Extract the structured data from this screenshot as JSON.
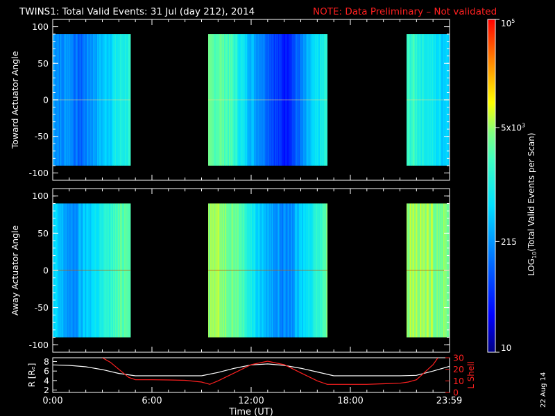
{
  "title": "TWINS1: Total Valid Events: 31 Jul (day 212), 2014",
  "note": "NOTE: Data Preliminary – Not validated",
  "date_stamp": "22 Aug 14",
  "colors": {
    "background": "#000000",
    "axes": "#ffffff",
    "note": "#ff2020",
    "r_line": "#ffffff",
    "lshell_line": "#ff2020"
  },
  "chart_data": [
    {
      "type": "heatmap",
      "ylabel": "Toward Actuator Angle",
      "xlim": [
        0,
        24
      ],
      "ylim": [
        -110,
        110
      ],
      "yticks": [
        "100",
        "50",
        "0",
        "-50",
        "-100"
      ],
      "data_yrange": [
        -90,
        90
      ],
      "segments": [
        {
          "start": 0.0,
          "end": 4.7,
          "profile": [
            2.4,
            2.35,
            2.2,
            2.4,
            2.3,
            2.1,
            2.0,
            2.2,
            2.3,
            2.4,
            2.5,
            2.6,
            2.7,
            2.8,
            2.9,
            3.0,
            3.05,
            3.1
          ]
        },
        {
          "start": 9.4,
          "end": 16.6,
          "profile": [
            3.4,
            3.45,
            3.5,
            3.4,
            3.3,
            3.0,
            2.8,
            2.6,
            2.4,
            2.3,
            2.1,
            1.9,
            1.7,
            1.6,
            1.8,
            2.0,
            2.2,
            2.5,
            2.7,
            2.9,
            3.1
          ]
        },
        {
          "start": 21.4,
          "end": 24.0,
          "profile": [
            3.2,
            3.25,
            3.1,
            3.0,
            2.9,
            2.8,
            2.7,
            2.75
          ]
        }
      ]
    },
    {
      "type": "heatmap",
      "ylabel": "Away Actuator Angle",
      "xlim": [
        0,
        24
      ],
      "ylim": [
        -110,
        110
      ],
      "yticks": [
        "100",
        "50",
        "0",
        "-50",
        "-100"
      ],
      "data_yrange": [
        -90,
        90
      ],
      "segments": [
        {
          "start": 0.0,
          "end": 4.7,
          "profile": [
            2.7,
            2.6,
            2.5,
            2.4,
            2.2,
            2.3,
            2.5,
            2.6,
            2.7,
            2.8,
            2.9,
            3.0,
            3.1,
            3.2,
            3.3,
            3.4,
            3.5,
            3.55
          ]
        },
        {
          "start": 9.4,
          "end": 16.6,
          "profile": [
            3.7,
            3.75,
            3.7,
            3.65,
            3.6,
            3.5,
            3.3,
            3.0,
            2.8,
            2.6,
            2.5,
            2.4,
            2.3,
            2.2,
            2.3,
            2.5,
            2.7,
            2.9,
            3.1,
            3.3,
            3.5
          ]
        },
        {
          "start": 21.4,
          "end": 24.0,
          "profile": [
            3.75,
            3.8,
            3.75,
            3.7,
            3.7,
            3.65,
            3.6,
            3.55
          ]
        }
      ]
    },
    {
      "type": "line",
      "xlabel": "Time (UT)",
      "ylabel_left": "R [Rₑ]",
      "ylabel_right": "L Shell",
      "xlim": [
        0,
        24
      ],
      "xticks": [
        {
          "v": 0,
          "label": "0:00"
        },
        {
          "v": 6,
          "label": "6:00"
        },
        {
          "v": 12,
          "label": "12:00"
        },
        {
          "v": 18,
          "label": "18:00"
        },
        {
          "v": 23.98,
          "label": "23:59"
        }
      ],
      "yticks_left": [
        "8",
        "6",
        "4",
        "2"
      ],
      "yticks_right": [
        "30",
        "20",
        "10",
        "0"
      ],
      "ylim_left": [
        1.5,
        8.8
      ],
      "ylim_right": [
        0,
        30
      ],
      "series": [
        {
          "axis": "left",
          "x": [
            0,
            1,
            2,
            3,
            4,
            5,
            6,
            7,
            8,
            9,
            10,
            11,
            12,
            13,
            14,
            15,
            16,
            17,
            18,
            19,
            20,
            21,
            22,
            23,
            24
          ],
          "y": [
            7.3,
            7.2,
            6.9,
            6.3,
            5.5,
            5.0,
            5.0,
            5.0,
            5.0,
            5.0,
            5.7,
            6.6,
            7.3,
            7.5,
            7.2,
            6.6,
            5.8,
            5.0,
            5.0,
            5.0,
            5.0,
            5.0,
            5.1,
            6.0,
            7.0
          ]
        },
        {
          "axis": "right",
          "x": [
            3,
            3.5,
            4,
            4.6,
            5,
            6,
            7,
            8,
            9,
            9.5,
            10,
            11,
            12,
            13,
            14,
            15,
            16,
            16.6,
            17,
            18,
            19,
            20,
            21,
            21.5,
            22,
            23,
            23.3
          ],
          "y": [
            30,
            26,
            20,
            13,
            11,
            11,
            10.8,
            10.5,
            9,
            7,
            10,
            17,
            24,
            27,
            24,
            17,
            10,
            7,
            7,
            7,
            7,
            7.5,
            8,
            9,
            11,
            24,
            30
          ]
        }
      ]
    }
  ],
  "colorbar": {
    "label_log": "LOG",
    "label_sub": "10",
    "label_rest": "(Total Valid Events per Scan)",
    "ticks": [
      {
        "label_pre": "10",
        "label_sup": "5",
        "level": 5
      },
      {
        "label_pre": "5x10",
        "label_sup": "3",
        "level": 3.7
      },
      {
        "label_pre": "215",
        "label_sup": "",
        "level": 2.33
      },
      {
        "label_pre": "10",
        "label_sup": "",
        "level": 1
      }
    ],
    "range": [
      1,
      5
    ]
  }
}
